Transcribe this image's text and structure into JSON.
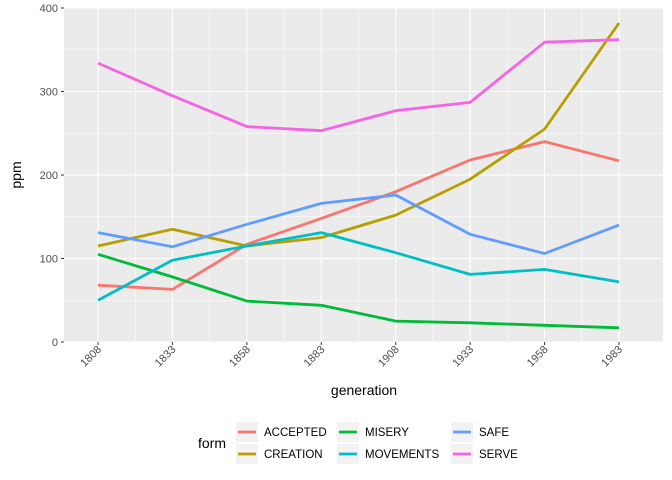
{
  "chart_data": {
    "type": "line",
    "xlabel": "generation",
    "ylabel": "ppm",
    "x": [
      1808,
      1833,
      1858,
      1883,
      1908,
      1933,
      1958,
      1983
    ],
    "ylim": [
      0,
      400
    ],
    "yticks": [
      0,
      100,
      200,
      300,
      400
    ],
    "grid": true,
    "legend_title": "form",
    "legend_position": "bottom",
    "series": [
      {
        "name": "ACCEPTED",
        "color": "#F8766D",
        "values": [
          68,
          63,
          117,
          148,
          180,
          218,
          240,
          217
        ]
      },
      {
        "name": "CREATION",
        "color": "#B79F00",
        "values": [
          115,
          135,
          115,
          125,
          152,
          195,
          255,
          382
        ]
      },
      {
        "name": "MISERY",
        "color": "#00BA38",
        "values": [
          105,
          78,
          49,
          44,
          25,
          23,
          20,
          17
        ]
      },
      {
        "name": "MOVEMENTS",
        "color": "#00BFC4",
        "values": [
          50,
          98,
          115,
          131,
          107,
          81,
          87,
          72
        ]
      },
      {
        "name": "SAFE",
        "color": "#619CFF",
        "values": [
          131,
          114,
          141,
          166,
          176,
          129,
          106,
          140
        ]
      },
      {
        "name": "SERVE",
        "color": "#F564E3",
        "values": [
          334,
          295,
          258,
          253,
          277,
          287,
          359,
          362
        ]
      }
    ]
  }
}
